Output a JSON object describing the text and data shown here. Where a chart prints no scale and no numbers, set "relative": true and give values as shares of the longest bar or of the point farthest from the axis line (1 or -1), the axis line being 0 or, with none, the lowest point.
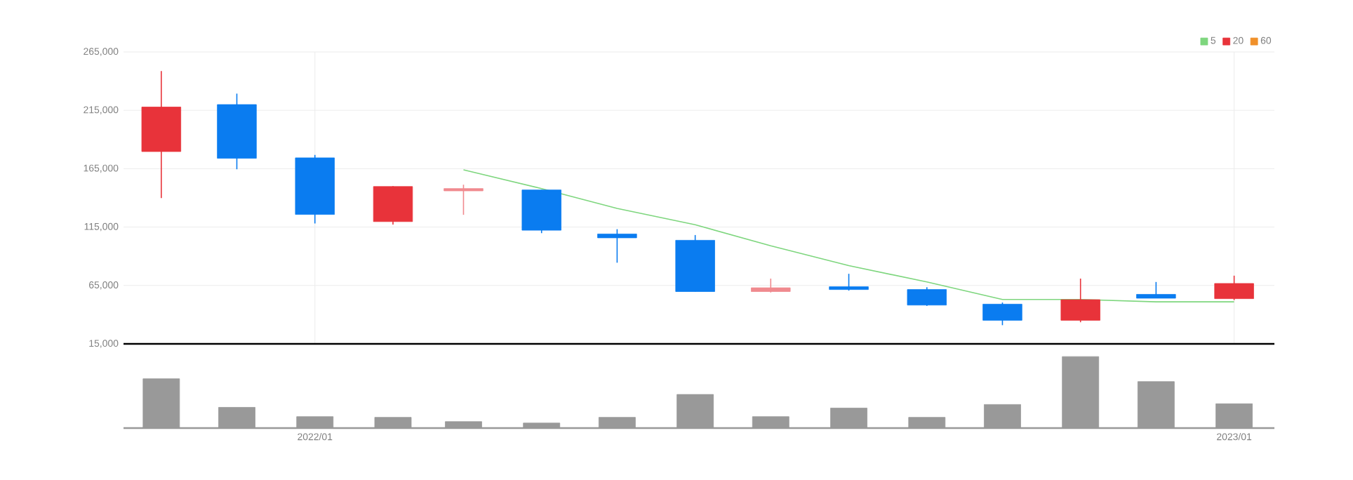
{
  "chart_data": [
    {
      "type": "candlestick",
      "x": [
        "2021-11",
        "2021-12",
        "2022-01",
        "2022-02",
        "2022-03",
        "2022-04",
        "2022-05",
        "2022-06",
        "2022-07",
        "2022-08",
        "2022-09",
        "2022-10",
        "2022-11",
        "2022-12",
        "2023-01"
      ],
      "ohlc": [
        [
          179700,
          248600,
          139900,
          217800
        ],
        [
          219900,
          229300,
          164500,
          173900
        ],
        [
          174300,
          176800,
          118100,
          125800
        ],
        [
          119700,
          150000,
          117200,
          149700
        ],
        [
          146000,
          151300,
          125500,
          148000
        ],
        [
          146800,
          146800,
          109800,
          112300
        ],
        [
          109100,
          113200,
          84500,
          105800
        ],
        [
          103700,
          108200,
          59800,
          59800
        ],
        [
          59800,
          70900,
          59000,
          63000
        ],
        [
          63900,
          75000,
          60600,
          61500
        ],
        [
          61500,
          63500,
          47500,
          48200
        ],
        [
          49000,
          50400,
          31000,
          35200
        ],
        [
          35200,
          70900,
          33500,
          52800
        ],
        [
          57400,
          68000,
          54100,
          54100
        ],
        [
          53700,
          73400,
          52500,
          66700
        ]
      ],
      "colors": [
        "#e8333a",
        "#0a7cf0",
        "#0a7cf0",
        "#e8333a",
        "#f08a8f",
        "#0a7cf0",
        "#0a7cf0",
        "#0a7cf0",
        "#f08a8f",
        "#0a7cf0",
        "#0a7cf0",
        "#0a7cf0",
        "#e8333a",
        "#0a7cf0",
        "#e8333a"
      ],
      "series": [
        {
          "name": "5",
          "type": "line",
          "color": "#7ed67e",
          "values": [
            null,
            null,
            null,
            null,
            164000,
            148000,
            131000,
            117000,
            99000,
            82000,
            68000,
            53000,
            53000,
            51000,
            51000
          ]
        },
        {
          "name": "20",
          "type": "line",
          "color": "#e8333a",
          "values": [
            null,
            null,
            null,
            null,
            null,
            null,
            null,
            null,
            null,
            null,
            null,
            null,
            null,
            null,
            null
          ]
        },
        {
          "name": "60",
          "type": "line",
          "color": "#f0902a",
          "values": [
            null,
            null,
            null,
            null,
            null,
            null,
            null,
            null,
            null,
            null,
            null,
            null,
            null,
            null,
            null
          ]
        }
      ],
      "xlim": [
        "2021-10-17",
        "2023-01-17"
      ],
      "xticks": [
        {
          "value": "2022-01",
          "label": null
        },
        {
          "value": "2023-01",
          "label": null
        }
      ],
      "ylim": [
        15000,
        265000
      ],
      "yticks": [
        {
          "value": 15000,
          "label": "15,000"
        },
        {
          "value": 65000,
          "label": "65,000"
        },
        {
          "value": 115000,
          "label": "115,000"
        },
        {
          "value": 165000,
          "label": "165,000"
        },
        {
          "value": 215000,
          "label": "215,000"
        },
        {
          "value": 265000,
          "label": "265,000"
        }
      ],
      "grid": true,
      "legend": "top right",
      "tick_labels": "y"
    },
    {
      "type": "bar",
      "relative": true,
      "x": [
        "2021-11",
        "2021-12",
        "2022-01",
        "2022-02",
        "2022-03",
        "2022-04",
        "2022-05",
        "2022-06",
        "2022-07",
        "2022-08",
        "2022-09",
        "2022-10",
        "2022-11",
        "2022-12",
        "2023-01"
      ],
      "values": [
        0.69,
        0.29,
        0.16,
        0.15,
        0.09,
        0.07,
        0.15,
        0.47,
        0.16,
        0.28,
        0.15,
        0.33,
        1,
        0.65,
        0.34
      ],
      "color": "#999999",
      "xlim": [
        "2021-10-17",
        "2023-01-17"
      ],
      "xticks": [
        {
          "value": "2022-01",
          "label": "2022/01"
        },
        {
          "value": "2023-01",
          "label": "2023/01"
        }
      ],
      "tick_labels": "x"
    }
  ]
}
